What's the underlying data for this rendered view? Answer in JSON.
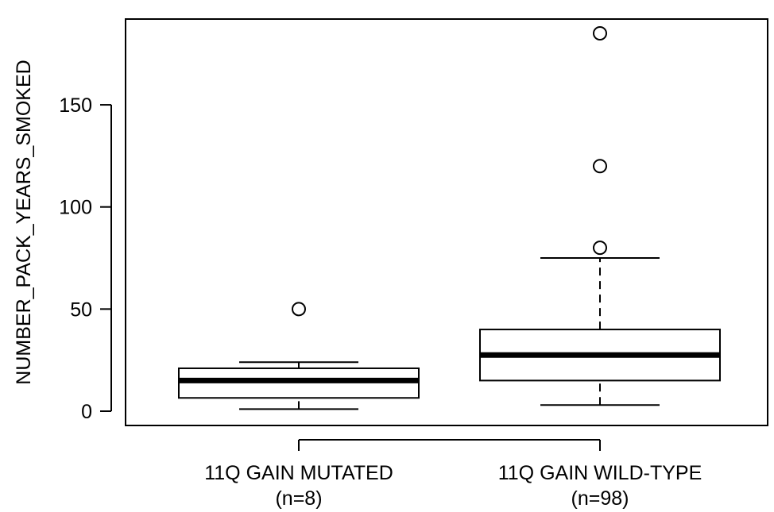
{
  "chart_data": {
    "type": "boxplot",
    "ylabel": "NUMBER_PACK_YEARS_SMOKED",
    "ylim": [
      -7,
      192
    ],
    "y_ticks": [
      0,
      50,
      100,
      150
    ],
    "y_tick_labels": [
      "0",
      "50",
      "100",
      "150"
    ],
    "grid": false,
    "groups": [
      {
        "label": "11Q GAIN MUTATED",
        "n_label": "(n=8)",
        "whisker_low": 1,
        "q1": 6.5,
        "median": 15,
        "q3": 21,
        "whisker_high": 24,
        "outliers": [
          50
        ]
      },
      {
        "label": "11Q GAIN WILD-TYPE",
        "n_label": "(n=98)",
        "whisker_low": 3,
        "q1": 15,
        "median": 27.5,
        "q3": 40,
        "whisker_high": 75,
        "outliers": [
          80,
          120,
          185
        ]
      }
    ]
  }
}
